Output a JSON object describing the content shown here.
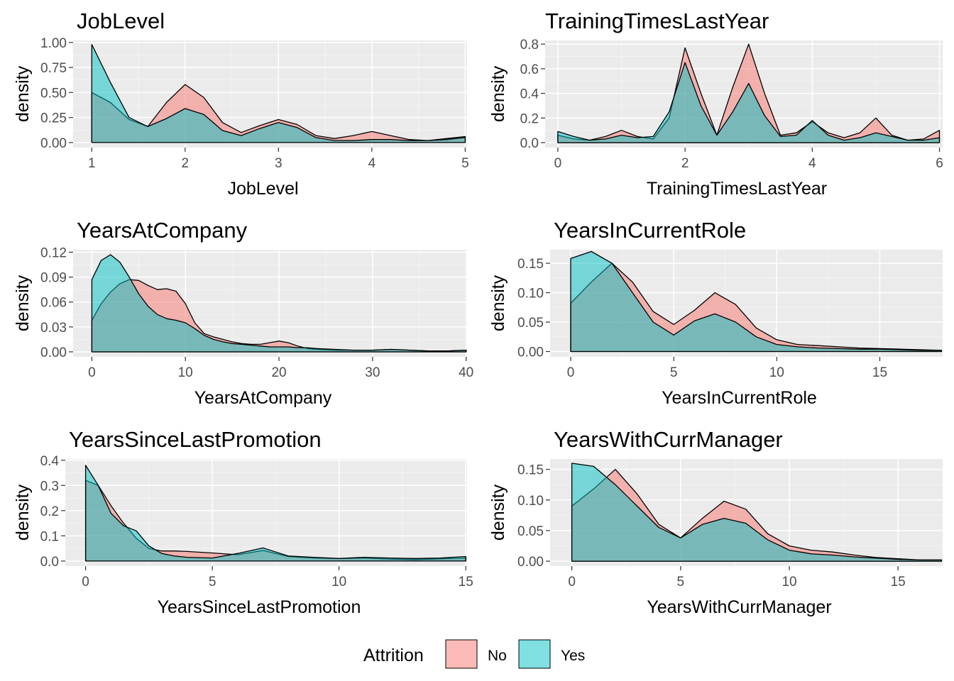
{
  "palette": {
    "No": "#F8766D",
    "Yes": "#00BFC4",
    "panel_bg": "#EBEBEB"
  },
  "legend": {
    "title": "Attrition",
    "items": [
      {
        "label": "No",
        "color": "#F8766D"
      },
      {
        "label": "Yes",
        "color": "#00BFC4"
      }
    ]
  },
  "chart_data": [
    {
      "type": "area",
      "title": "JobLevel",
      "xlabel": "JobLevel",
      "ylabel": "density",
      "xlim": [
        0.8,
        5.02
      ],
      "ylim": [
        -0.05,
        1.02
      ],
      "xticks": [
        1,
        2,
        3,
        4,
        5
      ],
      "xtick_labels": [
        "1",
        "2",
        "3",
        "4",
        "5"
      ],
      "yticks": [
        0,
        0.25,
        0.5,
        0.75,
        1.0
      ],
      "ytick_labels": [
        "0.00",
        "0.25",
        "0.50",
        "0.75",
        "1.00"
      ],
      "grid": true,
      "series": [
        {
          "name": "No",
          "color": "#F8766D",
          "x": [
            1,
            1.2,
            1.4,
            1.6,
            1.8,
            2,
            2.2,
            2.4,
            2.6,
            2.8,
            3,
            3.2,
            3.4,
            3.6,
            3.8,
            4,
            4.2,
            4.4,
            4.6,
            4.8,
            5
          ],
          "y": [
            0.5,
            0.4,
            0.23,
            0.16,
            0.4,
            0.58,
            0.45,
            0.2,
            0.1,
            0.17,
            0.23,
            0.18,
            0.07,
            0.04,
            0.07,
            0.11,
            0.07,
            0.03,
            0.02,
            0.04,
            0.06
          ]
        },
        {
          "name": "Yes",
          "color": "#00BFC4",
          "x": [
            1,
            1.2,
            1.4,
            1.6,
            1.8,
            2,
            2.2,
            2.4,
            2.6,
            2.8,
            3,
            3.2,
            3.4,
            3.6,
            3.8,
            4,
            4.2,
            4.4,
            4.6,
            4.8,
            5
          ],
          "y": [
            0.98,
            0.6,
            0.25,
            0.16,
            0.24,
            0.34,
            0.28,
            0.12,
            0.07,
            0.14,
            0.2,
            0.15,
            0.05,
            0.02,
            0.02,
            0.03,
            0.03,
            0.02,
            0.02,
            0.03,
            0.05
          ]
        }
      ]
    },
    {
      "type": "area",
      "title": "TrainingTimesLastYear",
      "xlabel": "TrainingTimesLastYear",
      "ylabel": "density",
      "xlim": [
        -0.2,
        6.05
      ],
      "ylim": [
        -0.04,
        0.83
      ],
      "xticks": [
        0,
        2,
        4,
        6
      ],
      "xtick_labels": [
        "0",
        "2",
        "4",
        "6"
      ],
      "yticks": [
        0,
        0.2,
        0.4,
        0.6,
        0.8
      ],
      "ytick_labels": [
        "0.0",
        "0.2",
        "0.4",
        "0.6",
        "0.8"
      ],
      "grid": true,
      "series": [
        {
          "name": "No",
          "color": "#F8766D",
          "x": [
            0,
            0.25,
            0.5,
            0.75,
            1,
            1.25,
            1.5,
            1.75,
            2,
            2.25,
            2.5,
            2.75,
            3,
            3.25,
            3.5,
            3.75,
            4,
            4.25,
            4.5,
            4.75,
            5,
            5.25,
            5.5,
            5.75,
            6
          ],
          "y": [
            0.06,
            0.03,
            0.02,
            0.05,
            0.1,
            0.05,
            0.03,
            0.2,
            0.77,
            0.4,
            0.06,
            0.45,
            0.8,
            0.4,
            0.06,
            0.08,
            0.17,
            0.08,
            0.04,
            0.08,
            0.2,
            0.06,
            0.02,
            0.03,
            0.1
          ]
        },
        {
          "name": "Yes",
          "color": "#00BFC4",
          "x": [
            0,
            0.25,
            0.5,
            0.75,
            1,
            1.25,
            1.5,
            1.75,
            2,
            2.25,
            2.5,
            2.75,
            3,
            3.25,
            3.5,
            3.75,
            4,
            4.25,
            4.5,
            4.75,
            5,
            5.25,
            5.5,
            5.75,
            6
          ],
          "y": [
            0.09,
            0.05,
            0.02,
            0.03,
            0.06,
            0.04,
            0.05,
            0.25,
            0.65,
            0.3,
            0.06,
            0.25,
            0.48,
            0.22,
            0.05,
            0.06,
            0.18,
            0.06,
            0.02,
            0.04,
            0.08,
            0.05,
            0.02,
            0.02,
            0.04
          ]
        }
      ]
    },
    {
      "type": "area",
      "title": "YearsAtCompany",
      "xlabel": "YearsAtCompany",
      "ylabel": "density",
      "xlim": [
        -2,
        40.1
      ],
      "ylim": [
        -0.006,
        0.123
      ],
      "xticks": [
        0,
        10,
        20,
        30,
        40
      ],
      "xtick_labels": [
        "0",
        "10",
        "20",
        "30",
        "40"
      ],
      "yticks": [
        0,
        0.03,
        0.06,
        0.09,
        0.12
      ],
      "ytick_labels": [
        "0.00",
        "0.03",
        "0.06",
        "0.09",
        "0.12"
      ],
      "grid": true,
      "series": [
        {
          "name": "No",
          "color": "#F8766D",
          "x": [
            0,
            1,
            2,
            3,
            4,
            5,
            6,
            7,
            8,
            9,
            10,
            11,
            12,
            13,
            14,
            15,
            16,
            17,
            18,
            19,
            20,
            21,
            22,
            23,
            24,
            26,
            28,
            30,
            32,
            34,
            36,
            38,
            40
          ],
          "y": [
            0.038,
            0.058,
            0.072,
            0.082,
            0.087,
            0.086,
            0.08,
            0.075,
            0.076,
            0.073,
            0.058,
            0.035,
            0.022,
            0.018,
            0.015,
            0.012,
            0.01,
            0.009,
            0.009,
            0.011,
            0.013,
            0.011,
            0.007,
            0.004,
            0.003,
            0.002,
            0.002,
            0.002,
            0.003,
            0.002,
            0.001,
            0.001,
            0.002
          ]
        },
        {
          "name": "Yes",
          "color": "#00BFC4",
          "x": [
            0,
            1,
            2,
            3,
            4,
            5,
            6,
            7,
            8,
            9,
            10,
            11,
            12,
            13,
            14,
            15,
            16,
            17,
            18,
            19,
            20,
            21,
            22,
            23,
            24,
            26,
            28,
            30,
            32,
            34,
            36,
            38,
            40
          ],
          "y": [
            0.087,
            0.11,
            0.117,
            0.108,
            0.09,
            0.07,
            0.055,
            0.045,
            0.04,
            0.038,
            0.035,
            0.028,
            0.02,
            0.015,
            0.012,
            0.01,
            0.009,
            0.008,
            0.007,
            0.006,
            0.006,
            0.006,
            0.005,
            0.005,
            0.004,
            0.003,
            0.002,
            0.002,
            0.003,
            0.002,
            0.001,
            0.001,
            0.002
          ]
        }
      ]
    },
    {
      "type": "area",
      "title": "YearsInCurrentRole",
      "xlabel": "YearsInCurrentRole",
      "ylabel": "density",
      "xlim": [
        -1,
        18.05
      ],
      "ylim": [
        -0.009,
        0.173
      ],
      "xticks": [
        0,
        5,
        10,
        15
      ],
      "xtick_labels": [
        "0",
        "5",
        "10",
        "15"
      ],
      "yticks": [
        0,
        0.05,
        0.1,
        0.15
      ],
      "ytick_labels": [
        "0.00",
        "0.05",
        "0.10",
        "0.15"
      ],
      "grid": true,
      "series": [
        {
          "name": "No",
          "color": "#F8766D",
          "x": [
            0,
            1,
            2,
            3,
            4,
            5,
            6,
            7,
            8,
            9,
            10,
            11,
            12,
            13,
            14,
            15,
            16,
            17,
            18
          ],
          "y": [
            0.082,
            0.118,
            0.15,
            0.118,
            0.068,
            0.046,
            0.07,
            0.1,
            0.08,
            0.04,
            0.02,
            0.012,
            0.01,
            0.008,
            0.006,
            0.005,
            0.004,
            0.003,
            0.002
          ]
        },
        {
          "name": "Yes",
          "color": "#00BFC4",
          "x": [
            0,
            1,
            2,
            3,
            4,
            5,
            6,
            7,
            8,
            9,
            10,
            11,
            12,
            13,
            14,
            15,
            16,
            17,
            18
          ],
          "y": [
            0.158,
            0.17,
            0.15,
            0.1,
            0.05,
            0.028,
            0.052,
            0.064,
            0.05,
            0.025,
            0.012,
            0.008,
            0.006,
            0.005,
            0.004,
            0.004,
            0.003,
            0.002,
            0.002
          ]
        }
      ]
    },
    {
      "type": "area",
      "title": "YearsSinceLastPromotion",
      "xlabel": "YearsSinceLastPromotion",
      "ylabel": "density",
      "xlim": [
        -0.8,
        15.05
      ],
      "ylim": [
        -0.02,
        0.405
      ],
      "xticks": [
        0,
        5,
        10,
        15
      ],
      "xtick_labels": [
        "0",
        "5",
        "10",
        "15"
      ],
      "yticks": [
        0,
        0.1,
        0.2,
        0.3,
        0.4
      ],
      "ytick_labels": [
        "0.0",
        "0.1",
        "0.2",
        "0.3",
        "0.4"
      ],
      "grid": true,
      "series": [
        {
          "name": "No",
          "color": "#F8766D",
          "x": [
            0,
            0.5,
            1,
            1.5,
            2,
            2.5,
            3,
            3.5,
            4,
            5,
            6,
            7,
            8,
            9,
            10,
            11,
            12,
            13,
            14,
            15
          ],
          "y": [
            0.32,
            0.3,
            0.22,
            0.15,
            0.09,
            0.05,
            0.04,
            0.04,
            0.038,
            0.032,
            0.025,
            0.042,
            0.018,
            0.012,
            0.01,
            0.012,
            0.008,
            0.006,
            0.009,
            0.012
          ]
        },
        {
          "name": "Yes",
          "color": "#00BFC4",
          "x": [
            0,
            0.5,
            1,
            1.5,
            2,
            2.5,
            3,
            3.5,
            4,
            5,
            6,
            7,
            8,
            9,
            10,
            11,
            12,
            13,
            14,
            15
          ],
          "y": [
            0.38,
            0.3,
            0.19,
            0.14,
            0.12,
            0.06,
            0.03,
            0.02,
            0.015,
            0.012,
            0.03,
            0.052,
            0.02,
            0.015,
            0.01,
            0.015,
            0.012,
            0.01,
            0.012,
            0.018
          ]
        }
      ]
    },
    {
      "type": "area",
      "title": "YearsWithCurrManager",
      "xlabel": "YearsWithCurrManager",
      "ylabel": "density",
      "xlim": [
        -1,
        17.05
      ],
      "ylim": [
        -0.008,
        0.167
      ],
      "xticks": [
        0,
        5,
        10,
        15
      ],
      "xtick_labels": [
        "0",
        "5",
        "10",
        "15"
      ],
      "yticks": [
        0,
        0.05,
        0.1,
        0.15
      ],
      "ytick_labels": [
        "0.00",
        "0.05",
        "0.10",
        "0.15"
      ],
      "grid": true,
      "series": [
        {
          "name": "No",
          "color": "#F8766D",
          "x": [
            0,
            1,
            2,
            3,
            4,
            5,
            6,
            7,
            8,
            9,
            10,
            11,
            12,
            13,
            14,
            15,
            16,
            17
          ],
          "y": [
            0.09,
            0.118,
            0.15,
            0.11,
            0.06,
            0.038,
            0.07,
            0.098,
            0.085,
            0.045,
            0.025,
            0.018,
            0.015,
            0.01,
            0.006,
            0.004,
            0.002,
            0.002
          ]
        },
        {
          "name": "Yes",
          "color": "#00BFC4",
          "x": [
            0,
            1,
            2,
            3,
            4,
            5,
            6,
            7,
            8,
            9,
            10,
            11,
            12,
            13,
            14,
            15,
            16,
            17
          ],
          "y": [
            0.16,
            0.155,
            0.125,
            0.09,
            0.055,
            0.038,
            0.06,
            0.07,
            0.062,
            0.035,
            0.018,
            0.012,
            0.01,
            0.007,
            0.005,
            0.003,
            0.002,
            0.002
          ]
        }
      ]
    }
  ]
}
